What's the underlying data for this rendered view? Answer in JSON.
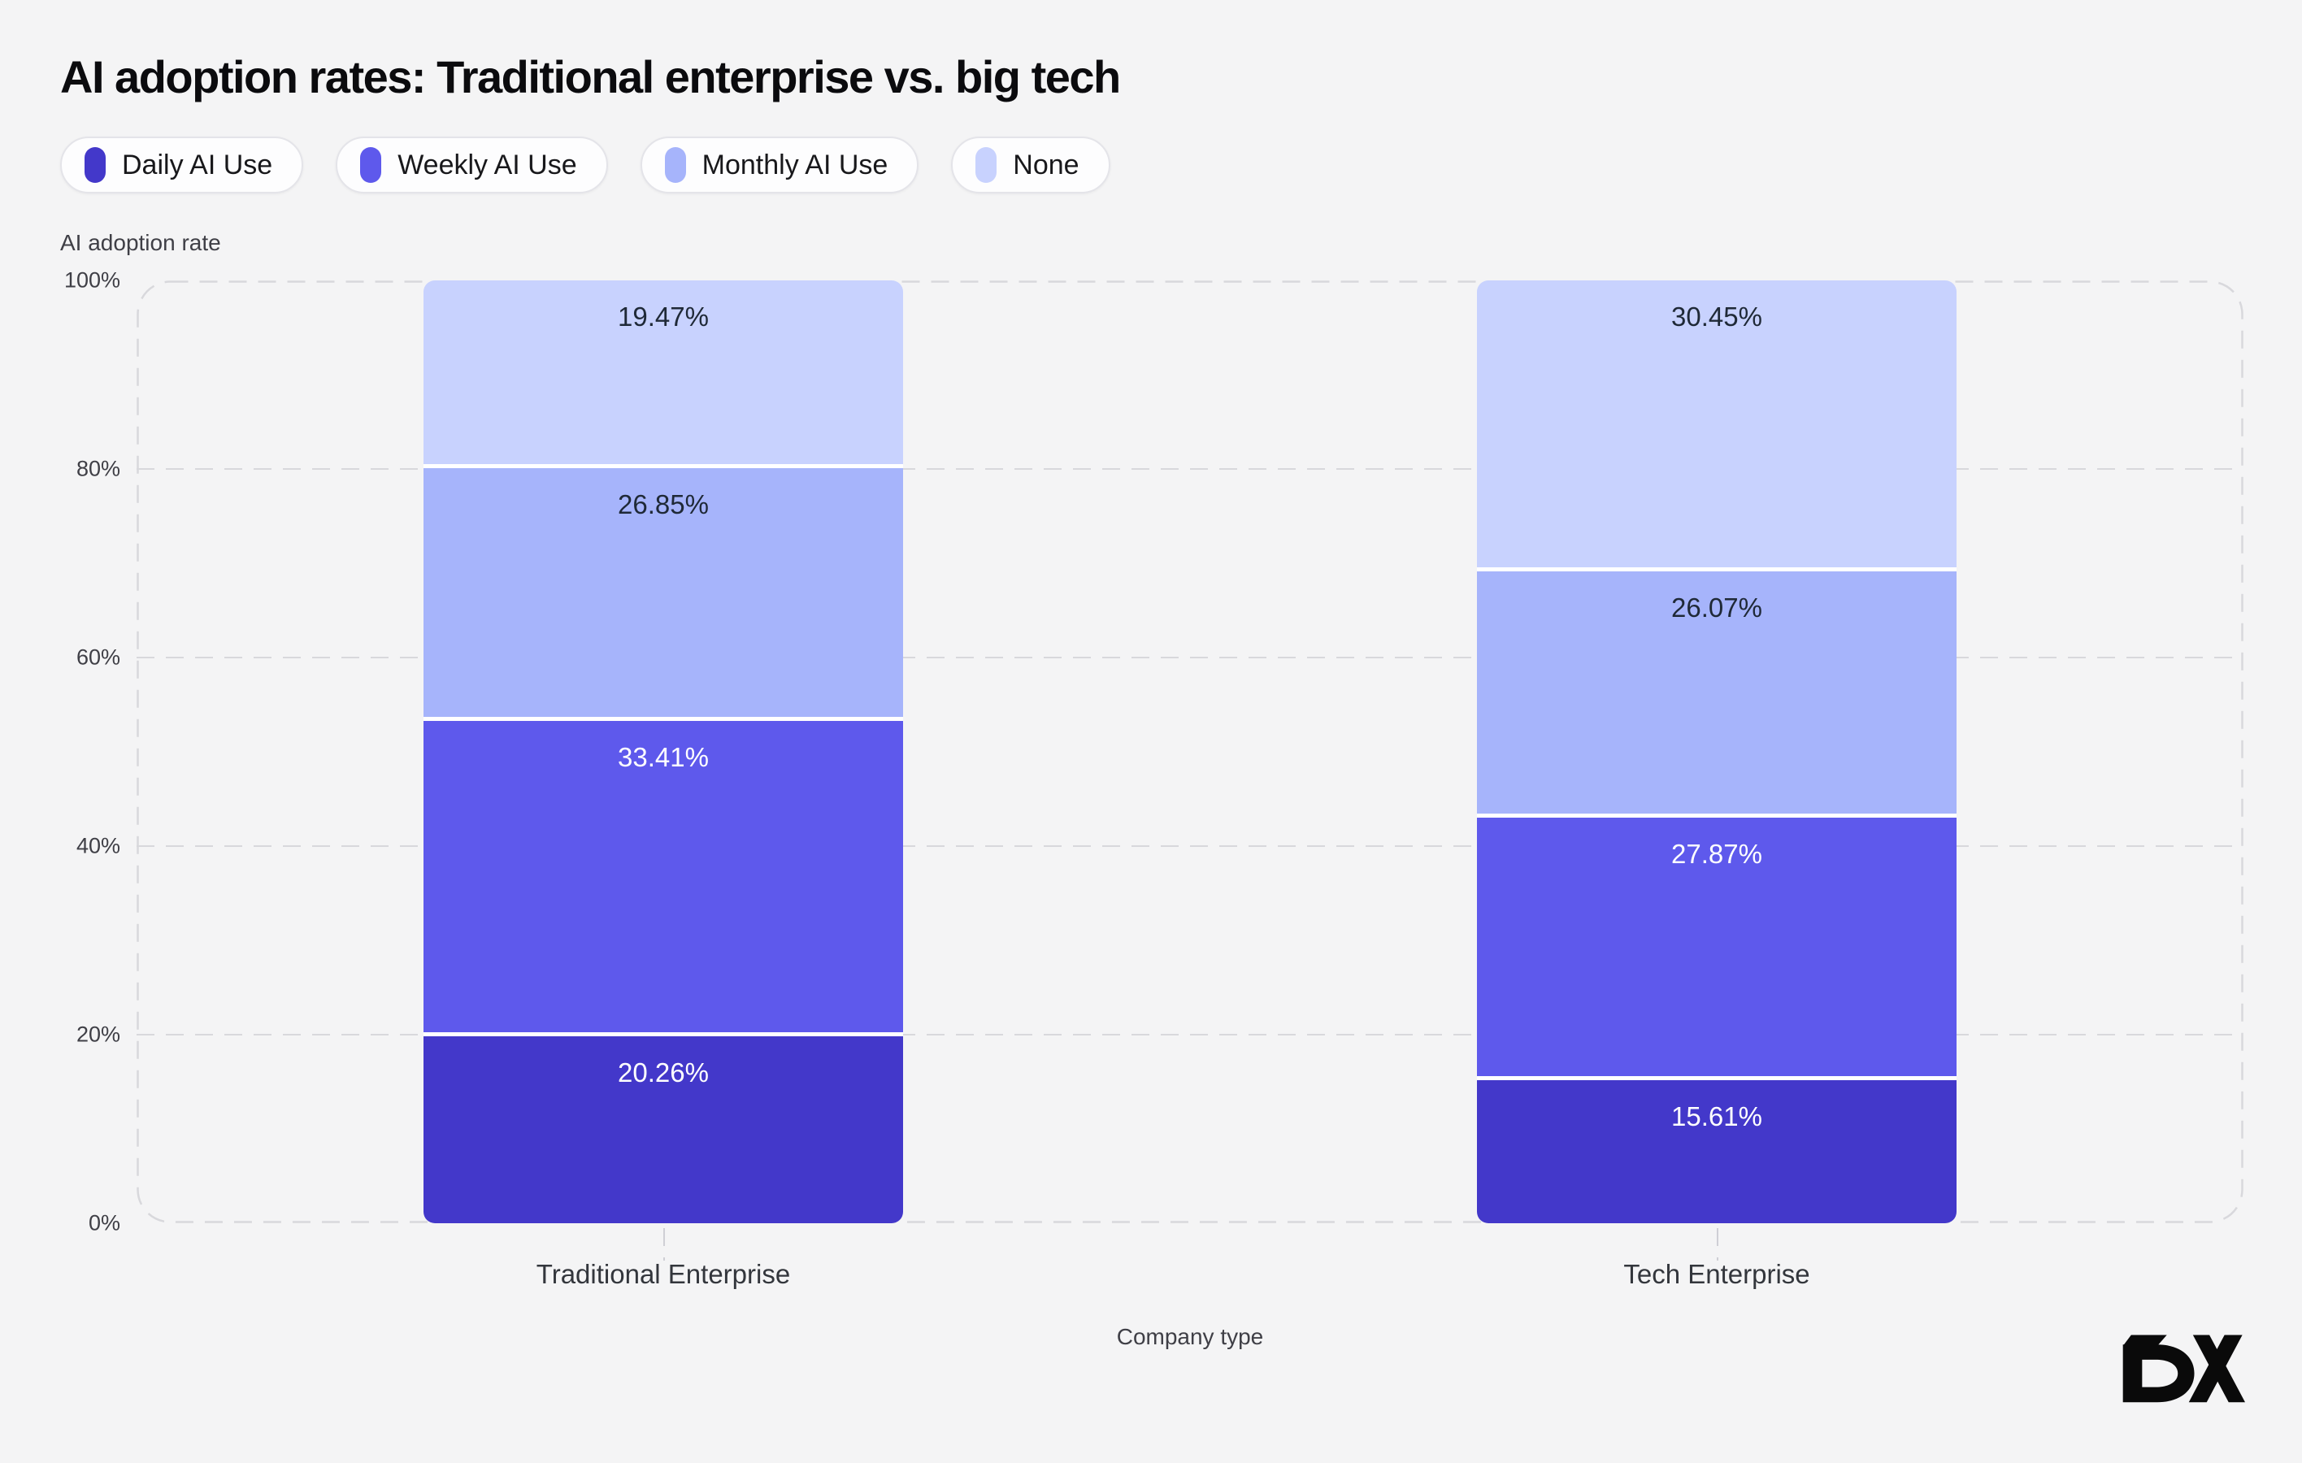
{
  "title": "AI adoption rates: Traditional enterprise vs. big tech",
  "axes": {
    "y_title": "AI adoption rate",
    "x_title": "Company type"
  },
  "logo_text": "DX",
  "colors": {
    "background": "#F4F4F5",
    "grid": "#D8D8DC",
    "segment_separator": "#FFFFFF",
    "pill_border": "#E4E4E9"
  },
  "chart_data": {
    "type": "bar",
    "stacked": true,
    "title": "AI adoption rates: Traditional enterprise vs. big tech",
    "xlabel": "Company type",
    "ylabel": "AI adoption rate",
    "ylim": [
      0,
      100
    ],
    "y_ticks": [
      0,
      20,
      40,
      60,
      80,
      100
    ],
    "y_tick_suffix": "%",
    "grid": "horizontal-dashed",
    "legend_position": "top-left",
    "categories": [
      "Traditional Enterprise",
      "Tech Enterprise"
    ],
    "series": [
      {
        "name": "Daily AI Use",
        "color": "#4338CA",
        "label_color": "#FFFFFF",
        "values": [
          20.26,
          15.61
        ]
      },
      {
        "name": "Weekly AI Use",
        "color": "#5E59EC",
        "label_color": "#FFFFFF",
        "values": [
          33.41,
          27.87
        ]
      },
      {
        "name": "Monthly AI Use",
        "color": "#A6B4FB",
        "label_color": "#1F2937",
        "values": [
          26.85,
          26.07
        ]
      },
      {
        "name": "None",
        "color": "#C8D2FE",
        "label_color": "#1F2937",
        "values": [
          19.47,
          30.45
        ]
      }
    ]
  }
}
